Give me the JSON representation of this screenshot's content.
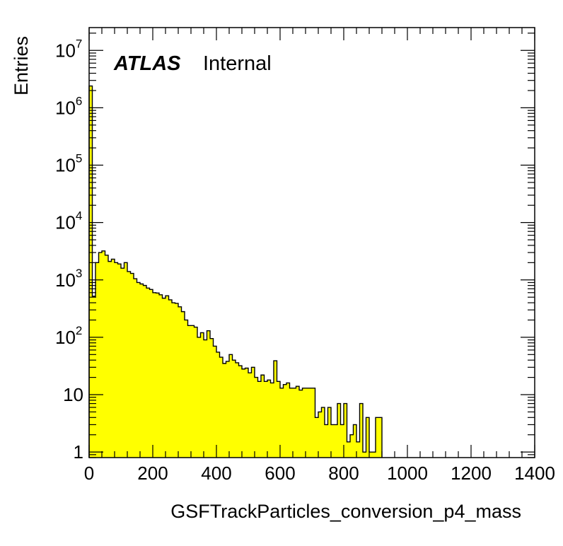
{
  "chart_data": {
    "type": "bar",
    "title": "",
    "xlabel": "GSFTrackParticles_conversion_p4_mass",
    "ylabel": "Entries",
    "label_bold": "ATLAS",
    "label_text": "Internal",
    "fill_color": "#ffff00",
    "line_color": "#000000",
    "y_scale": "log",
    "xlim": [
      0,
      1400
    ],
    "ylim": [
      0.8,
      25000000
    ],
    "grid": false,
    "x_ticks": [
      0,
      200,
      400,
      600,
      800,
      1000,
      1200,
      1400
    ],
    "x_tick_labels": [
      "0",
      "200",
      "400",
      "600",
      "800",
      "1000",
      "1200",
      "1400"
    ],
    "y_ticks": [
      1,
      10,
      100,
      1000,
      10000,
      100000,
      1000000,
      10000000
    ],
    "y_tick_labels": [
      {
        "base": "1",
        "exp": ""
      },
      {
        "base": "10",
        "exp": ""
      },
      {
        "base": "10",
        "exp": "2"
      },
      {
        "base": "10",
        "exp": "3"
      },
      {
        "base": "10",
        "exp": "4"
      },
      {
        "base": "10",
        "exp": "5"
      },
      {
        "base": "10",
        "exp": "6"
      },
      {
        "base": "10",
        "exp": "7"
      }
    ],
    "bin_width": 10,
    "bin_start": 0,
    "values": [
      2400000,
      520,
      2000,
      3000,
      3200,
      2700,
      2100,
      2300,
      2000,
      1900,
      1600,
      2000,
      1400,
      1300,
      1050,
      900,
      850,
      800,
      720,
      680,
      600,
      590,
      550,
      480,
      530,
      450,
      400,
      390,
      340,
      280,
      200,
      160,
      160,
      150,
      100,
      120,
      90,
      130,
      95,
      70,
      55,
      45,
      35,
      38,
      50,
      40,
      36,
      32,
      28,
      29,
      24,
      30,
      20,
      17,
      22,
      17,
      18,
      16,
      39,
      17,
      13,
      15,
      16,
      13,
      13,
      14,
      12,
      13,
      13,
      13,
      13,
      4,
      5,
      6,
      3,
      6,
      3,
      3,
      7,
      3,
      7,
      1.5,
      2,
      3,
      1.5,
      7,
      1,
      4,
      1,
      1,
      4,
      4
    ]
  }
}
